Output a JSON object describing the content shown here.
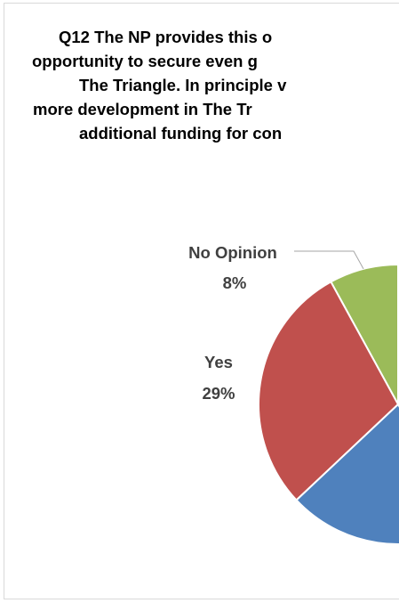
{
  "chart_data": {
    "type": "pie",
    "title_lines": [
      "Q12 The  NP provides this o",
      "opportunity to secure even g",
      "The Triangle.  In principle v",
      "more development in The Tr",
      "additional funding for con"
    ],
    "slices": [
      {
        "label": "No Opinion",
        "percent_label": "8%",
        "value": 8,
        "color": "#9BBB59"
      },
      {
        "label": "Yes",
        "percent_label": "29%",
        "value": 29,
        "color": "#C0504D"
      }
    ],
    "partially_visible_slice_color": "#4F81BD",
    "legend": "none"
  }
}
